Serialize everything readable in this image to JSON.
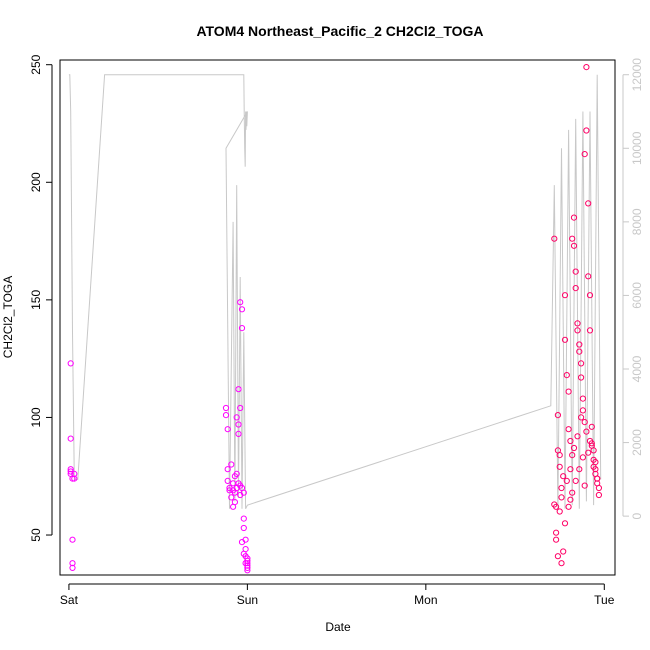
{
  "chart_data": {
    "type": "scatter",
    "title": "ATOM4 Northeast_Pacific_2 CH2Cl2_TOGA",
    "xlabel": "Date",
    "ylabel": "CH2Cl2_TOGA",
    "x_ticks": [
      "Sat",
      "Sun",
      "Mon",
      "Tue"
    ],
    "xlim": [
      -0.05,
      3.06
    ],
    "ylim": [
      33,
      252
    ],
    "y_ticks": [
      50,
      100,
      150,
      200,
      250
    ],
    "y2lim": [
      -1600,
      12400
    ],
    "y2_ticks": [
      0,
      2000,
      4000,
      6000,
      8000,
      10000,
      12000
    ],
    "grid": false,
    "colors": {
      "points_early": "#ff00ff",
      "points_late": "#ff0066",
      "altitude_line": "#c8c8c8",
      "axis": "#000000",
      "axis_right": "#c8c8c8"
    },
    "series": [
      {
        "x": [
          0.01,
          0.01,
          0.01,
          0.01,
          0.01,
          0.02,
          0.02,
          0.02,
          0.02,
          0.03,
          0.03,
          0.88,
          0.88,
          0.89,
          0.89,
          0.89,
          0.9,
          0.9,
          0.91,
          0.92,
          0.93,
          0.94,
          0.95,
          0.95,
          0.95,
          0.96,
          0.96,
          0.97,
          0.97,
          0.98,
          0.98,
          0.99,
          0.99,
          1.0,
          1.0,
          1.0,
          1.0,
          1.0,
          0.93,
          0.95,
          0.96,
          0.97,
          0.98,
          0.94,
          0.96,
          0.91,
          0.92,
          0.94,
          0.99,
          1.0,
          0.92,
          0.93,
          0.97,
          0.98,
          0.99
        ],
        "values": [
          123,
          91,
          78,
          77,
          76,
          74,
          48,
          38,
          36,
          76,
          74,
          104,
          101,
          95,
          78,
          73,
          70,
          69,
          66,
          62,
          64,
          100,
          97,
          93,
          112,
          104,
          149,
          146,
          138,
          57,
          53,
          48,
          44,
          40,
          38,
          37,
          36,
          35,
          75,
          72,
          71,
          70,
          68,
          76,
          67,
          80,
          72,
          70,
          41,
          39,
          69,
          68,
          47,
          42,
          38
        ]
      },
      {
        "x": [
          2.72,
          2.72,
          2.73,
          2.73,
          2.74,
          2.74,
          2.75,
          2.75,
          2.76,
          2.76,
          2.77,
          2.78,
          2.78,
          2.79,
          2.8,
          2.8,
          2.81,
          2.81,
          2.82,
          2.82,
          2.83,
          2.83,
          2.84,
          2.84,
          2.85,
          2.85,
          2.86,
          2.86,
          2.87,
          2.87,
          2.88,
          2.88,
          2.89,
          2.89,
          2.9,
          2.9,
          2.91,
          2.91,
          2.92,
          2.92,
          2.93,
          2.93,
          2.94,
          2.94,
          2.95,
          2.95,
          2.96,
          2.96,
          2.97,
          2.97,
          2.73,
          2.75,
          2.77,
          2.79,
          2.81,
          2.83,
          2.85,
          2.87,
          2.89,
          2.91,
          2.93,
          2.95,
          2.74,
          2.76,
          2.78,
          2.8,
          2.82,
          2.84,
          2.86,
          2.88,
          2.9,
          2.92,
          2.94,
          2.96
        ],
        "values": [
          176,
          63,
          62,
          51,
          86,
          101,
          84,
          79,
          70,
          66,
          43,
          152,
          133,
          118,
          111,
          95,
          90,
          78,
          84,
          176,
          185,
          173,
          162,
          155,
          140,
          137,
          131,
          128,
          123,
          117,
          108,
          103,
          98,
          212,
          222,
          249,
          191,
          160,
          152,
          137,
          96,
          88,
          86,
          82,
          78,
          76,
          74,
          72,
          70,
          67,
          48,
          60,
          75,
          73,
          65,
          87,
          92,
          100,
          71,
          85,
          89,
          81,
          41,
          38,
          55,
          62,
          68,
          73,
          78,
          83,
          94,
          90,
          79,
          74
        ]
      }
    ],
    "altitude_line": {
      "x": [
        0.0,
        0.005,
        0.01,
        0.015,
        0.02,
        0.03,
        0.05,
        0.2,
        0.5,
        0.85,
        0.98,
        0.982,
        0.985,
        0.988,
        0.99,
        0.992,
        0.995,
        0.997,
        1.0,
        0.88,
        0.9,
        0.92,
        0.93,
        0.94,
        0.95,
        0.96,
        0.97,
        0.98,
        0.99,
        1.0,
        2.7,
        2.72,
        2.74,
        2.76,
        2.78,
        2.8,
        2.82,
        2.84,
        2.86,
        2.88,
        2.9,
        2.92,
        2.94,
        2.96,
        2.98
      ],
      "y": [
        12000,
        12000,
        11000,
        8000,
        5000,
        1000,
        1000,
        12000,
        12000,
        12000,
        12000,
        11000,
        10000,
        9500,
        11000,
        10500,
        11000,
        10600,
        11000,
        10000,
        200,
        8000,
        400,
        9000,
        500,
        6500,
        200,
        5000,
        200,
        300,
        3000,
        9000,
        200,
        10000,
        200,
        10500,
        300,
        10800,
        200,
        11000,
        400,
        11000,
        300,
        12000,
        1000
      ]
    }
  }
}
